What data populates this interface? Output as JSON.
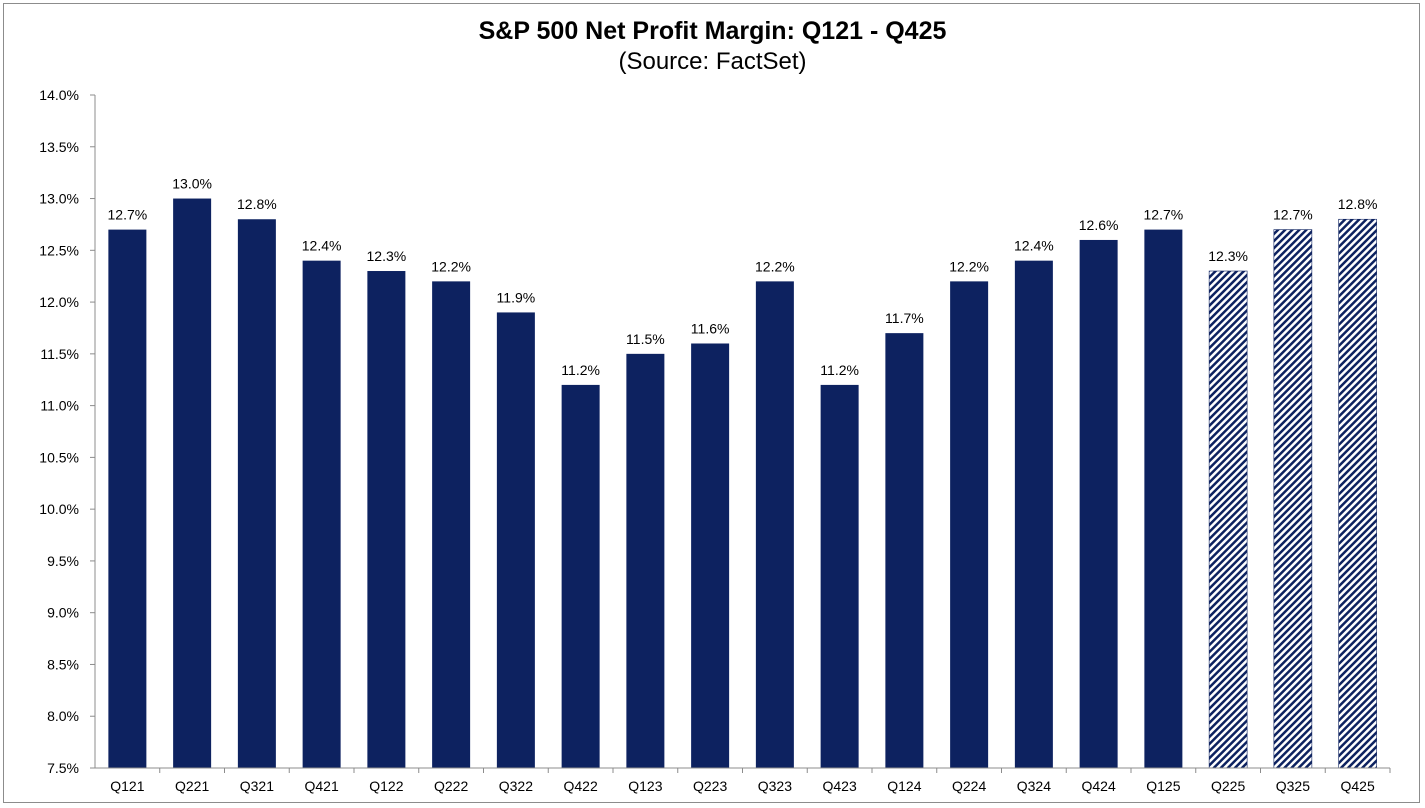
{
  "chart_data": {
    "type": "bar",
    "title": "S&P 500 Net Profit Margin: Q121 - Q425",
    "subtitle": "(Source: FactSet)",
    "categories": [
      "Q121",
      "Q221",
      "Q321",
      "Q421",
      "Q122",
      "Q222",
      "Q322",
      "Q422",
      "Q123",
      "Q223",
      "Q323",
      "Q423",
      "Q124",
      "Q224",
      "Q324",
      "Q424",
      "Q125",
      "Q225",
      "Q325",
      "Q425"
    ],
    "values": [
      12.7,
      13.0,
      12.8,
      12.4,
      12.3,
      12.2,
      11.9,
      11.2,
      11.5,
      11.6,
      12.2,
      11.2,
      11.7,
      12.2,
      12.4,
      12.6,
      12.7,
      12.3,
      12.7,
      12.8
    ],
    "data_labels": [
      "12.7%",
      "13.0%",
      "12.8%",
      "12.4%",
      "12.3%",
      "12.2%",
      "11.9%",
      "11.2%",
      "11.5%",
      "11.6%",
      "12.2%",
      "11.2%",
      "11.7%",
      "12.2%",
      "12.4%",
      "12.6%",
      "12.7%",
      "12.3%",
      "12.7%",
      "12.8%"
    ],
    "estimated": [
      false,
      false,
      false,
      false,
      false,
      false,
      false,
      false,
      false,
      false,
      false,
      false,
      false,
      false,
      false,
      false,
      false,
      true,
      true,
      true
    ],
    "ylim": [
      7.5,
      14.0
    ],
    "yticks": [
      "7.5%",
      "8.0%",
      "8.5%",
      "9.0%",
      "9.5%",
      "10.0%",
      "10.5%",
      "11.0%",
      "11.5%",
      "12.0%",
      "12.5%",
      "13.0%",
      "13.5%",
      "14.0%"
    ],
    "xlabel": "",
    "ylabel": "",
    "grid": false,
    "legend": "none",
    "colors": {
      "bar": "#0d2260",
      "hatch": "#0d2260",
      "axis": "#8c8c8c"
    }
  }
}
